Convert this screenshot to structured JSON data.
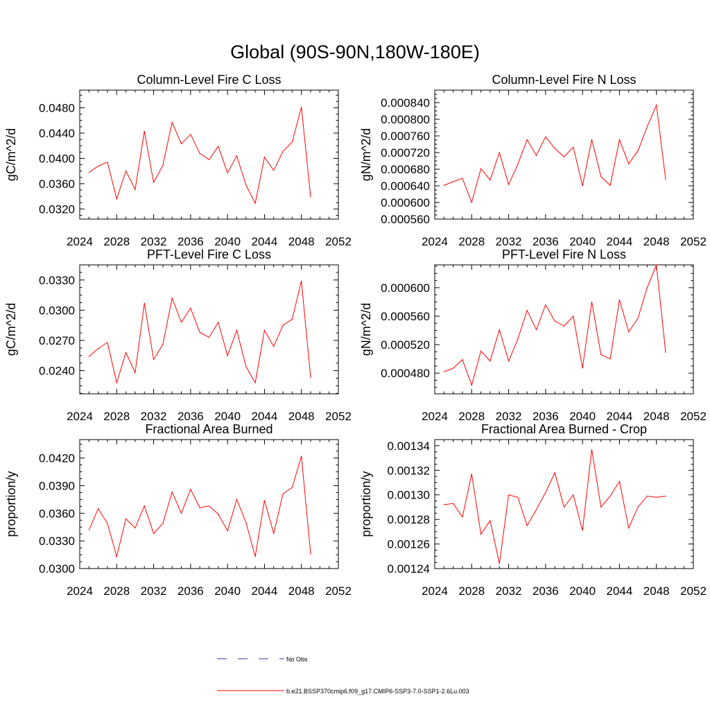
{
  "figure": {
    "title": "Global (90S-90N,180W-180E)"
  },
  "legend": {
    "entries": [
      {
        "label": "No Obs",
        "color": "#3333aa",
        "style": "dashed"
      },
      {
        "label": "b.e21.BSSP370cmip6.f09_g17.CMIP6-SSP3-7.0-SSP1-2.6Lu.003",
        "color": "#ff0000",
        "style": "solid"
      }
    ]
  },
  "chart_data": [
    {
      "type": "line",
      "title": "Column-Level Fire C Loss",
      "ylabel": "gC/m^2/d",
      "xlim": [
        2024,
        2052
      ],
      "xticks": [
        "2024",
        "2028",
        "2032",
        "2036",
        "2040",
        "2044",
        "2048",
        "2052"
      ],
      "ylim": [
        0.0304,
        0.0508
      ],
      "yticks": [
        "0.0320",
        "0.0360",
        "0.0400",
        "0.0440",
        "0.0480"
      ],
      "series": [
        {
          "color": "#ff0000",
          "x": [
            2025,
            2026,
            2027,
            2028,
            2029,
            2030,
            2031,
            2032,
            2033,
            2034,
            2035,
            2036,
            2037,
            2038,
            2039,
            2040,
            2041,
            2042,
            2043,
            2044,
            2045,
            2046,
            2047,
            2048,
            2049
          ],
          "values": [
            0.0378,
            0.0388,
            0.0394,
            0.0336,
            0.038,
            0.0351,
            0.0443,
            0.0362,
            0.0389,
            0.0457,
            0.0423,
            0.0438,
            0.0408,
            0.0398,
            0.0419,
            0.0377,
            0.0404,
            0.0358,
            0.0329,
            0.0402,
            0.0381,
            0.0411,
            0.0426,
            0.0481,
            0.0339
          ]
        }
      ]
    },
    {
      "type": "line",
      "title": "Column-Level Fire N Loss",
      "ylabel": "gN/m^2/d",
      "xlim": [
        2024,
        2052
      ],
      "xticks": [
        "2024",
        "2028",
        "2032",
        "2036",
        "2040",
        "2044",
        "2048",
        "2052"
      ],
      "ylim": [
        0.00056,
        0.00087
      ],
      "yticks": [
        "0.000560",
        "0.000600",
        "0.000640",
        "0.000680",
        "0.000720",
        "0.000760",
        "0.000800",
        "0.000840"
      ],
      "series": [
        {
          "color": "#ff0000",
          "x": [
            2025,
            2026,
            2027,
            2028,
            2029,
            2030,
            2031,
            2032,
            2033,
            2034,
            2035,
            2036,
            2037,
            2038,
            2039,
            2040,
            2041,
            2042,
            2043,
            2044,
            2045,
            2046,
            2047,
            2048,
            2049
          ],
          "values": [
            0.000641,
            0.00065,
            0.000658,
            0.0006,
            0.000681,
            0.000654,
            0.00072,
            0.000643,
            0.000692,
            0.000751,
            0.000713,
            0.000758,
            0.00073,
            0.00071,
            0.000733,
            0.00064,
            0.000751,
            0.000662,
            0.000641,
            0.000751,
            0.000693,
            0.000724,
            0.000782,
            0.000834,
            0.000655
          ]
        }
      ]
    },
    {
      "type": "line",
      "title": "PFT-Level Fire C Loss",
      "ylabel": "gC/m^2/d",
      "xlim": [
        2024,
        2052
      ],
      "xticks": [
        "2024",
        "2028",
        "2032",
        "2036",
        "2040",
        "2044",
        "2048",
        "2052"
      ],
      "ylim": [
        0.0217,
        0.0345
      ],
      "yticks": [
        "0.0240",
        "0.0270",
        "0.0300",
        "0.0330"
      ],
      "series": [
        {
          "color": "#ff0000",
          "x": [
            2025,
            2026,
            2027,
            2028,
            2029,
            2030,
            2031,
            2032,
            2033,
            2034,
            2035,
            2036,
            2037,
            2038,
            2039,
            2040,
            2041,
            2042,
            2043,
            2044,
            2045,
            2046,
            2047,
            2048,
            2049
          ],
          "values": [
            0.0254,
            0.0262,
            0.0268,
            0.0228,
            0.0258,
            0.0238,
            0.0307,
            0.0251,
            0.0266,
            0.0312,
            0.0288,
            0.0302,
            0.0278,
            0.0273,
            0.0288,
            0.0255,
            0.028,
            0.0244,
            0.0228,
            0.028,
            0.0264,
            0.0285,
            0.0291,
            0.0329,
            0.0233
          ]
        }
      ]
    },
    {
      "type": "line",
      "title": "PFT-Level Fire N Loss",
      "ylabel": "gN/m^2/d",
      "xlim": [
        2024,
        2052
      ],
      "xticks": [
        "2024",
        "2028",
        "2032",
        "2036",
        "2040",
        "2044",
        "2048",
        "2052"
      ],
      "ylim": [
        0.000451,
        0.000632
      ],
      "yticks": [
        "0.000480",
        "0.000520",
        "0.000560",
        "0.000600"
      ],
      "series": [
        {
          "color": "#ff0000",
          "x": [
            2025,
            2026,
            2027,
            2028,
            2029,
            2030,
            2031,
            2032,
            2033,
            2034,
            2035,
            2036,
            2037,
            2038,
            2039,
            2040,
            2041,
            2042,
            2043,
            2044,
            2045,
            2046,
            2047,
            2048,
            2049
          ],
          "values": [
            0.000482,
            0.000487,
            0.000499,
            0.000463,
            0.000511,
            0.000497,
            0.000541,
            0.000497,
            0.000528,
            0.000568,
            0.000541,
            0.000576,
            0.000553,
            0.000546,
            0.00056,
            0.000487,
            0.00058,
            0.000506,
            0.0005,
            0.000583,
            0.000538,
            0.000557,
            0.0006,
            0.000632,
            0.000509
          ]
        }
      ]
    },
    {
      "type": "line",
      "title": "Fractional Area Burned",
      "ylabel": "proportion/y",
      "xlim": [
        2024,
        2052
      ],
      "xticks": [
        "2024",
        "2028",
        "2032",
        "2036",
        "2040",
        "2044",
        "2048",
        "2052"
      ],
      "ylim": [
        0.03,
        0.044
      ],
      "yticks": [
        "0.0300",
        "0.0330",
        "0.0360",
        "0.0390",
        "0.0420"
      ],
      "series": [
        {
          "color": "#ff0000",
          "x": [
            2025,
            2026,
            2027,
            2028,
            2029,
            2030,
            2031,
            2032,
            2033,
            2034,
            2035,
            2036,
            2037,
            2038,
            2039,
            2040,
            2041,
            2042,
            2043,
            2044,
            2045,
            2046,
            2047,
            2048,
            2049
          ],
          "values": [
            0.0342,
            0.0365,
            0.0349,
            0.0313,
            0.0354,
            0.0344,
            0.0368,
            0.0338,
            0.0349,
            0.0383,
            0.036,
            0.0386,
            0.0366,
            0.0368,
            0.0359,
            0.0341,
            0.0375,
            0.035,
            0.0313,
            0.0374,
            0.0338,
            0.0381,
            0.0388,
            0.0422,
            0.0316
          ]
        }
      ]
    },
    {
      "type": "line",
      "title": "Fractional Area Burned - Crop",
      "ylabel": "proportion/y",
      "xlim": [
        2024,
        2052
      ],
      "xticks": [
        "2024",
        "2028",
        "2032",
        "2036",
        "2040",
        "2044",
        "2048",
        "2052"
      ],
      "ylim": [
        0.00124,
        0.001345
      ],
      "yticks": [
        "0.00124",
        "0.00126",
        "0.00128",
        "0.00130",
        "0.00132",
        "0.00134"
      ],
      "series": [
        {
          "color": "#ff0000",
          "x": [
            2025,
            2026,
            2027,
            2028,
            2029,
            2030,
            2031,
            2032,
            2033,
            2034,
            2035,
            2036,
            2037,
            2038,
            2039,
            2040,
            2041,
            2042,
            2043,
            2044,
            2045,
            2046,
            2047,
            2048,
            2049
          ],
          "values": [
            0.001292,
            0.001293,
            0.001282,
            0.001317,
            0.001268,
            0.001279,
            0.001244,
            0.0013,
            0.001298,
            0.001275,
            0.001288,
            0.001302,
            0.001318,
            0.00129,
            0.0013,
            0.001271,
            0.001337,
            0.00129,
            0.001299,
            0.001311,
            0.001273,
            0.00129,
            0.001299,
            0.001298,
            0.001299
          ]
        }
      ]
    }
  ]
}
